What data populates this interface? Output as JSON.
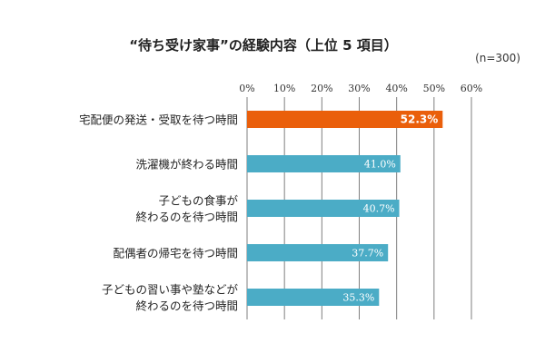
{
  "header": {
    "title": "“待ち受け家事”の経験内容（上位 5 項目）",
    "sample": "(n=300)"
  },
  "colors": {
    "highlight": "#EA5F0B",
    "bar": "#4BACC6",
    "grid": "#7F7F7F",
    "text": "#222222"
  },
  "chart_data": {
    "type": "bar",
    "orientation": "horizontal",
    "title": "“待ち受け家事”の経験内容（上位 5 項目）",
    "xlim": [
      0,
      60
    ],
    "ticks": [
      0,
      10,
      20,
      30,
      40,
      50,
      60
    ],
    "tick_labels": [
      "0%",
      "10%",
      "20%",
      "30%",
      "40%",
      "50%",
      "60%"
    ],
    "grid": true,
    "categories": [
      [
        "宅配便の発送・受取を待つ時間"
      ],
      [
        "洗濯機が終わる時間"
      ],
      [
        "子どもの食事が",
        "終わるのを待つ時間"
      ],
      [
        "配偶者の帰宅を待つ時間"
      ],
      [
        "子どもの習い事や塾などが",
        "終わるのを待つ時間"
      ]
    ],
    "values": [
      52.3,
      41.0,
      40.7,
      37.7,
      35.3
    ],
    "value_labels": [
      "52.3%",
      "41.0%",
      "40.7%",
      "37.7%",
      "35.3%"
    ],
    "highlight_index": 0
  }
}
